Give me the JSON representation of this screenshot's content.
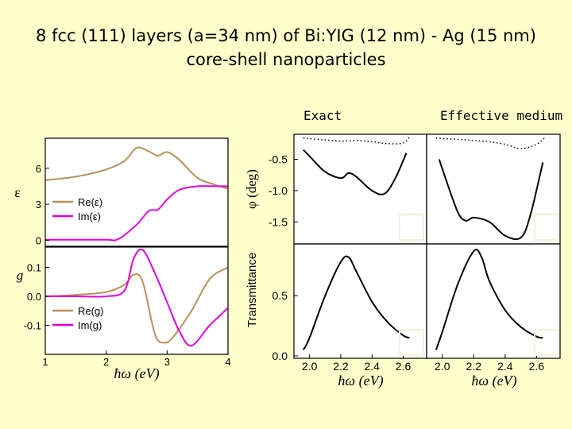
{
  "title_line1": "8 fcc (111) layers (a=34 nm) of Bi:YIG (12 nm) - Ag (15 nm)",
  "title_line2": "core-shell nanoparticles",
  "col_exact": "Exact",
  "col_effective": "Effective medium",
  "colors": {
    "background": "#ffffcc",
    "real": "#b8935a",
    "imag": "#e000e0",
    "curve": "#000000"
  },
  "chart_data": [
    {
      "type": "line",
      "ylabel": "ε",
      "xlim": [
        1,
        4
      ],
      "ylim": [
        -0.5,
        8.5
      ],
      "yticks": [
        0,
        3,
        6
      ],
      "ytick_labels": [
        "0",
        "3",
        "6"
      ],
      "series": [
        {
          "name": "Re(ε)",
          "x": [
            1.0,
            1.5,
            2.0,
            2.3,
            2.5,
            2.7,
            2.85,
            3.0,
            3.2,
            3.5,
            3.8,
            4.0
          ],
          "y": [
            5.0,
            5.3,
            5.9,
            6.6,
            7.7,
            7.4,
            7.05,
            7.35,
            6.7,
            5.2,
            4.6,
            4.3
          ]
        },
        {
          "name": "Im(ε)",
          "x": [
            1.0,
            1.5,
            2.0,
            2.2,
            2.5,
            2.7,
            2.85,
            3.0,
            3.2,
            3.5,
            3.8,
            4.0
          ],
          "y": [
            0.05,
            0.05,
            0.05,
            0.1,
            1.3,
            2.45,
            2.55,
            3.4,
            4.2,
            4.5,
            4.5,
            4.5
          ]
        }
      ]
    },
    {
      "type": "line",
      "ylabel": "g",
      "xlabel": "ħω (eV)",
      "xlim": [
        1,
        4
      ],
      "ylim": [
        -0.2,
        0.17
      ],
      "xticks": [
        1,
        2,
        3,
        4
      ],
      "xtick_labels": [
        "1",
        "2",
        "3",
        "4"
      ],
      "yticks": [
        -0.1,
        0.0,
        0.1
      ],
      "ytick_labels": [
        "-0.1",
        "0.0",
        "0.1"
      ],
      "series": [
        {
          "name": "Re(g)",
          "x": [
            1.0,
            1.5,
            2.0,
            2.3,
            2.45,
            2.6,
            2.8,
            2.95,
            3.1,
            3.4,
            3.7,
            4.0
          ],
          "y": [
            0.0,
            0.005,
            0.015,
            0.04,
            0.075,
            0.05,
            -0.13,
            -0.16,
            -0.14,
            -0.05,
            0.06,
            0.1
          ]
        },
        {
          "name": "Im(g)",
          "x": [
            1.0,
            1.5,
            2.0,
            2.3,
            2.45,
            2.6,
            2.8,
            3.0,
            3.2,
            3.4,
            3.7,
            4.0
          ],
          "y": [
            0.0,
            0.0,
            0.0,
            0.02,
            0.13,
            0.16,
            0.08,
            -0.02,
            -0.12,
            -0.17,
            -0.1,
            -0.04
          ]
        }
      ]
    },
    {
      "type": "line",
      "panel": "Exact",
      "ylabel": "φ (deg)",
      "xlim": [
        1.9,
        2.75
      ],
      "ylim": [
        -1.85,
        -0.1
      ],
      "yticks": [
        -0.5,
        -1.0,
        -1.5
      ],
      "ytick_labels": [
        "-0.5",
        "-1.0",
        "-1.5"
      ],
      "series": [
        {
          "x": [
            1.96,
            2.0,
            2.1,
            2.2,
            2.3,
            2.4,
            2.5,
            2.6,
            2.64
          ],
          "y": [
            -0.16,
            -0.17,
            -0.19,
            -0.21,
            -0.2,
            -0.22,
            -0.25,
            -0.24,
            -0.14
          ]
        },
        {
          "x": [
            1.96,
            2.0,
            2.1,
            2.2,
            2.25,
            2.3,
            2.4,
            2.48,
            2.55,
            2.62
          ],
          "y": [
            -0.35,
            -0.45,
            -0.7,
            -0.8,
            -0.72,
            -0.78,
            -1.0,
            -1.05,
            -0.8,
            -0.4
          ]
        }
      ]
    },
    {
      "type": "line",
      "panel": "Effective medium",
      "xlim": [
        1.9,
        2.75
      ],
      "ylim": [
        -1.85,
        -0.1
      ],
      "series": [
        {
          "x": [
            1.96,
            2.0,
            2.1,
            2.2,
            2.3,
            2.4,
            2.5,
            2.6,
            2.65
          ],
          "y": [
            -0.16,
            -0.17,
            -0.18,
            -0.2,
            -0.22,
            -0.26,
            -0.33,
            -0.26,
            -0.16
          ]
        },
        {
          "x": [
            1.98,
            2.02,
            2.1,
            2.15,
            2.2,
            2.3,
            2.4,
            2.5,
            2.56,
            2.64
          ],
          "y": [
            -0.5,
            -0.8,
            -1.35,
            -1.48,
            -1.43,
            -1.5,
            -1.72,
            -1.75,
            -1.4,
            -0.55
          ]
        }
      ]
    },
    {
      "type": "line",
      "panel": "Exact",
      "ylabel": "Transmittance",
      "xlabel": "ħω (eV)",
      "xlim": [
        1.9,
        2.75
      ],
      "ylim": [
        -0.02,
        0.93
      ],
      "xticks": [
        2.0,
        2.2,
        2.4,
        2.6
      ],
      "xtick_labels": [
        "2.0",
        "2.2",
        "2.4",
        "2.6"
      ],
      "yticks": [
        0.0,
        0.5
      ],
      "ytick_labels": [
        "0.0",
        "0.5"
      ],
      "series": [
        {
          "x": [
            1.96,
            2.0,
            2.1,
            2.2,
            2.25,
            2.3,
            2.4,
            2.5,
            2.6,
            2.64
          ],
          "y": [
            0.05,
            0.15,
            0.5,
            0.78,
            0.82,
            0.7,
            0.45,
            0.28,
            0.17,
            0.15
          ]
        }
      ]
    },
    {
      "type": "line",
      "panel": "Effective medium",
      "xlabel": "ħω (eV)",
      "xlim": [
        1.9,
        2.75
      ],
      "ylim": [
        -0.02,
        0.93
      ],
      "xticks": [
        2.0,
        2.2,
        2.4,
        2.6
      ],
      "xtick_labels": [
        "2.0",
        "2.2",
        "2.4",
        "2.6"
      ],
      "series": [
        {
          "x": [
            1.96,
            2.0,
            2.1,
            2.2,
            2.25,
            2.3,
            2.4,
            2.5,
            2.6,
            2.64
          ],
          "y": [
            0.05,
            0.2,
            0.6,
            0.87,
            0.82,
            0.62,
            0.38,
            0.24,
            0.16,
            0.15
          ]
        }
      ]
    }
  ]
}
